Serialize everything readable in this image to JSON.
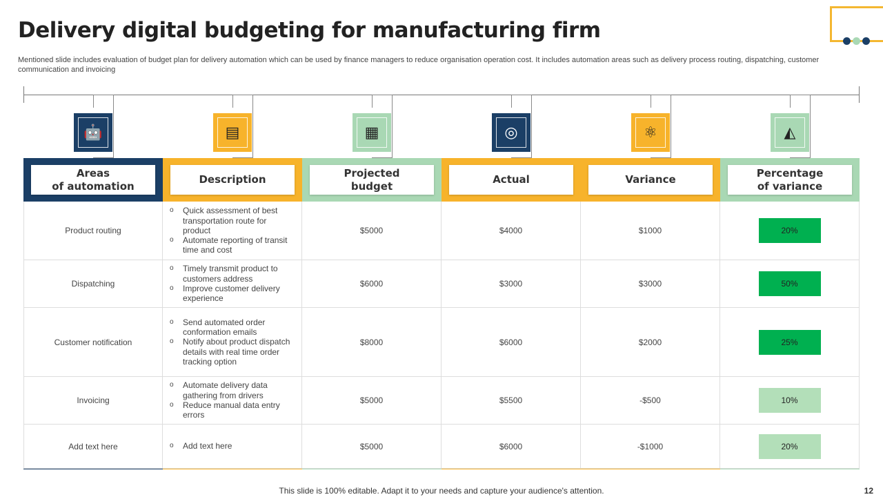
{
  "title": "Delivery digital budgeting for manufacturing firm",
  "subtitle": "Mentioned slide includes evaluation of budget plan for delivery automation which can be used by finance managers to reduce organisation operation cost. It includes automation areas such as delivery process routing, dispatching, customer communication and invoicing",
  "colors": {
    "navy": "#1b3f66",
    "orange": "#f7b32b",
    "green": "#a9d8b4",
    "dark_green": "#00b050",
    "light_green": "#b3dfb9"
  },
  "columns": [
    {
      "label": "Areas\nof automation",
      "icon": "robot-arm-icon",
      "color": "#1b3f66",
      "icon_color": "#1b3f66"
    },
    {
      "label": "Description",
      "icon": "document-icon",
      "color": "#f7b32b",
      "icon_color": "#f7b32b"
    },
    {
      "label": "Projected\nbudget",
      "icon": "budget-calculator-icon",
      "color": "#a9d8b4",
      "icon_color": "#a9d8b4"
    },
    {
      "label": "Actual",
      "icon": "actual-stamp-icon",
      "color": "#f7b32b",
      "icon_color": "#1b3f66"
    },
    {
      "label": "Variance",
      "icon": "variance-network-icon",
      "color": "#f7b32b",
      "icon_color": "#f7b32b"
    },
    {
      "label": "Percentage\nof variance",
      "icon": "shapes-icon",
      "color": "#a9d8b4",
      "icon_color": "#a9d8b4"
    }
  ],
  "rows": [
    {
      "area": "Product routing",
      "description": [
        "Quick assessment of best transportation route for product",
        "Automate reporting of transit time and cost"
      ],
      "projected": "$5000",
      "actual": "$4000",
      "variance": "$1000",
      "percentage": "20%",
      "highlight": true
    },
    {
      "area": "Dispatching",
      "description": [
        "Timely transmit product to customers address",
        "Improve customer delivery experience"
      ],
      "projected": "$6000",
      "actual": "$3000",
      "variance": "$3000",
      "percentage": "50%",
      "highlight": true
    },
    {
      "area": "Customer notification",
      "description": [
        "Send automated order conformation emails",
        "Notify about product dispatch details with real time order tracking option"
      ],
      "projected": "$8000",
      "actual": "$6000",
      "variance": "$2000",
      "percentage": "25%",
      "highlight": true
    },
    {
      "area": "Invoicing",
      "description": [
        "Automate delivery data gathering from drivers",
        "Reduce manual data entry errors"
      ],
      "projected": "$5000",
      "actual": "$5500",
      "variance": "-$500",
      "percentage": "10%",
      "highlight": false
    },
    {
      "area": "Add text here",
      "description": [
        "Add text here"
      ],
      "projected": "$5000",
      "actual": "$6000",
      "variance": "-$1000",
      "percentage": "20%",
      "highlight": false
    }
  ],
  "footer": "This slide is 100% editable. Adapt it to your needs and capture your audience's attention.",
  "page_number": "12"
}
